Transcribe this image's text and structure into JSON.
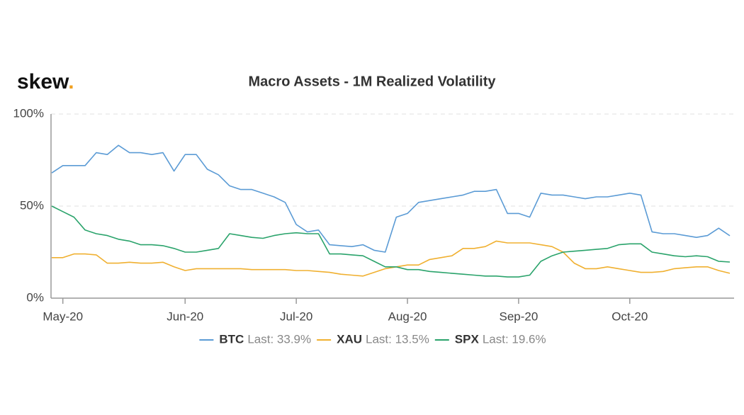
{
  "logo": {
    "text": "skew",
    "dot": "."
  },
  "chart_data": {
    "type": "line",
    "title": "Macro Assets - 1M Realized Volatility",
    "categories": [
      null,
      "May-20",
      null,
      null,
      null,
      null,
      null,
      null,
      null,
      null,
      null,
      null,
      "Jun-20",
      null,
      null,
      null,
      null,
      null,
      null,
      null,
      null,
      null,
      "Jul-20",
      null,
      null,
      null,
      null,
      null,
      null,
      null,
      null,
      null,
      "Aug-20",
      null,
      null,
      null,
      null,
      null,
      null,
      null,
      null,
      null,
      "Sep-20",
      null,
      null,
      null,
      null,
      null,
      null,
      null,
      null,
      null,
      "Oct-20",
      null,
      null,
      null,
      null,
      null,
      null,
      null,
      null,
      null
    ],
    "series": [
      {
        "name": "BTC",
        "legend_label": "Last: 33.9%",
        "color": "#5b9bd5",
        "values": [
          68,
          72,
          72,
          72,
          79,
          78,
          83,
          79,
          79,
          78,
          79,
          69,
          78,
          78,
          70,
          67,
          61,
          59,
          59,
          57,
          55,
          52,
          40,
          36,
          37,
          29,
          28.5,
          28,
          29,
          26,
          25,
          44,
          46,
          52,
          53,
          54,
          55,
          56,
          58,
          58,
          59,
          46,
          46,
          44,
          57,
          56,
          56,
          55,
          54,
          55,
          55,
          56,
          57,
          56,
          36,
          35,
          35,
          34,
          33,
          34,
          38,
          33.9
        ]
      },
      {
        "name": "XAU",
        "legend_label": "Last: 13.5%",
        "color": "#f0b030",
        "values": [
          22,
          22,
          24,
          24,
          23.5,
          19,
          19,
          19.5,
          19,
          19,
          19.5,
          17,
          15,
          16,
          16,
          16,
          16,
          16,
          15.5,
          15.5,
          15.5,
          15.5,
          15,
          15,
          14.5,
          14,
          13,
          12.5,
          12,
          14,
          16,
          17,
          18,
          18,
          21,
          22,
          23,
          27,
          27,
          28,
          31,
          30,
          30,
          30,
          29,
          28,
          25,
          19,
          16,
          16,
          17,
          16,
          15,
          14,
          14,
          14.5,
          16,
          16.5,
          17,
          17,
          15,
          13.5
        ]
      },
      {
        "name": "SPX",
        "legend_label": "Last: 19.6%",
        "color": "#2aa36b",
        "values": [
          50,
          47,
          44,
          37,
          35,
          34,
          32,
          31,
          29,
          29,
          28.5,
          27,
          25,
          25,
          26,
          27,
          35,
          34,
          33,
          32.5,
          34,
          35,
          35.5,
          35,
          35,
          24,
          24,
          23.5,
          23,
          20,
          17,
          17,
          15.5,
          15.5,
          14.5,
          14,
          13.5,
          13,
          12.5,
          12,
          12,
          11.5,
          11.5,
          12.5,
          20,
          23,
          25,
          25.5,
          26,
          26.5,
          27,
          29,
          29.5,
          29.5,
          25,
          24,
          23,
          22.5,
          23,
          22.5,
          20,
          19.6
        ]
      }
    ],
    "ylim": [
      0,
      100
    ],
    "yticks": [
      {
        "value": 0,
        "label": "0%"
      },
      {
        "value": 50,
        "label": "50%"
      },
      {
        "value": 100,
        "label": "100%"
      }
    ],
    "grid": true,
    "legend": "bottom"
  }
}
